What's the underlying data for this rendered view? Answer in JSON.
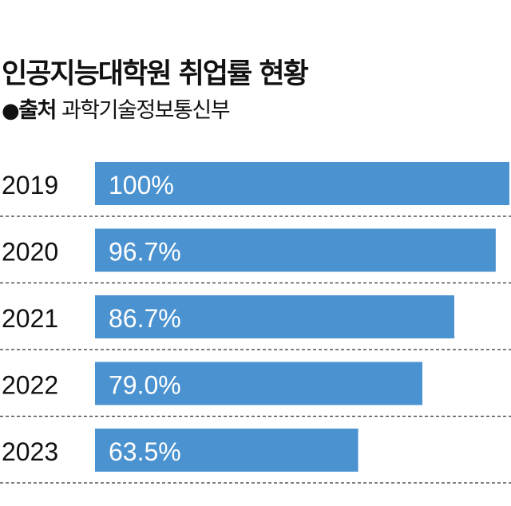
{
  "header": {
    "title": "인공지능대학원 취업률 현황",
    "source_bullet": "●",
    "source_label": "출처",
    "source_value": "과학기술정보통신부"
  },
  "colors": {
    "bar": "#4b92d0",
    "bar_label": "#ffffff",
    "separator": "#333333"
  },
  "chart_data": {
    "type": "bar",
    "orientation": "horizontal",
    "categories": [
      "2019",
      "2020",
      "2021",
      "2022",
      "2023"
    ],
    "values": [
      100,
      96.7,
      86.7,
      79.0,
      63.5
    ],
    "value_labels": [
      "100%",
      "96.7%",
      "86.7%",
      "79.0%",
      "63.5%"
    ],
    "xlim": [
      0,
      100
    ],
    "grid": false,
    "separators": "dashed"
  }
}
